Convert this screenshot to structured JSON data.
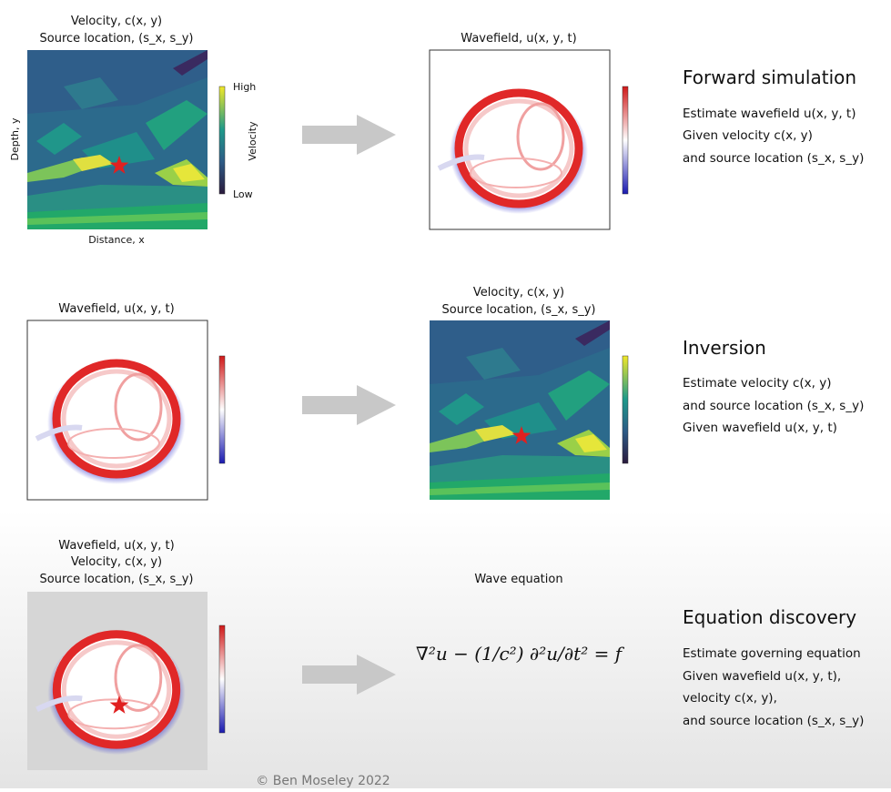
{
  "rows": [
    {
      "input": {
        "title_lines": [
          "Velocity, c(x, y)",
          "Source location, (s_x, s_y)"
        ],
        "y_label": "Depth, y",
        "x_label": "Distance, x",
        "colorbar": {
          "high": "High",
          "low": "Low",
          "label": "Velocity"
        }
      },
      "output": {
        "title_lines": [
          "Wavefield, u(x, y, t)"
        ]
      },
      "heading": "Forward simulation",
      "lines": [
        "Estimate wavefield u(x, y, t)",
        "Given velocity c(x, y)",
        "and source location (s_x, s_y)"
      ]
    },
    {
      "input": {
        "title_lines": [
          "Wavefield, u(x, y, t)"
        ]
      },
      "output": {
        "title_lines": [
          "Velocity, c(x, y)",
          "Source location, (s_x, s_y)"
        ]
      },
      "heading": "Inversion",
      "lines": [
        "Estimate velocity c(x, y)",
        "and source location (s_x, s_y)",
        "Given wavefield u(x, y, t)"
      ]
    },
    {
      "input": {
        "title_lines": [
          "Wavefield, u(x, y, t)",
          "Velocity, c(x, y)",
          "Source location, (s_x, s_y)"
        ]
      },
      "output": {
        "title_lines": [
          "Wave equation"
        ],
        "equation": "∇²u − (1/c²) ∂²u/∂t² = f"
      },
      "heading": "Equation discovery",
      "lines": [
        "Estimate governing equation",
        "Given wavefield u(x, y, t),",
        "velocity c(x, y),",
        "and source location (s_x, s_y)"
      ]
    }
  ],
  "footer": "© Ben Moseley 2022"
}
